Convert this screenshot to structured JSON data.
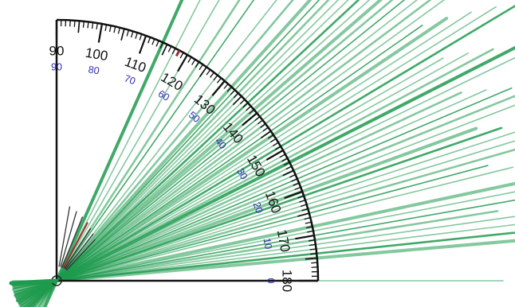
{
  "protractor": {
    "outer_labels": [
      "90",
      "100",
      "110",
      "120",
      "130",
      "140",
      "150",
      "160",
      "170",
      "180"
    ],
    "inner_labels": [
      "90",
      "80",
      "70",
      "60",
      "50",
      "40",
      "30",
      "20",
      "10",
      "0"
    ],
    "highlight_degree": 118,
    "colors": {
      "scale": "#111111",
      "inner_labels": "#2b2bb5",
      "highlight_tick": "#a12a2a",
      "rays": "#1f9a4e",
      "background": "#ffffff"
    }
  },
  "rays": {
    "description_free": true,
    "angles_deg": [
      66,
      63,
      60,
      57,
      55,
      52,
      50,
      48,
      47,
      46,
      45,
      44,
      43,
      42,
      41,
      40,
      39,
      38,
      37,
      36,
      35,
      34,
      33,
      32,
      31,
      30,
      29,
      28,
      27,
      26,
      25,
      24,
      23,
      22,
      21,
      20,
      19,
      18,
      17,
      16,
      15,
      14,
      12,
      11,
      10,
      9,
      8,
      7,
      6,
      5,
      0
    ]
  },
  "needles": {
    "angles_deg": [
      80,
      74,
      68,
      62,
      57,
      52,
      47
    ],
    "highlight_index": 3
  }
}
